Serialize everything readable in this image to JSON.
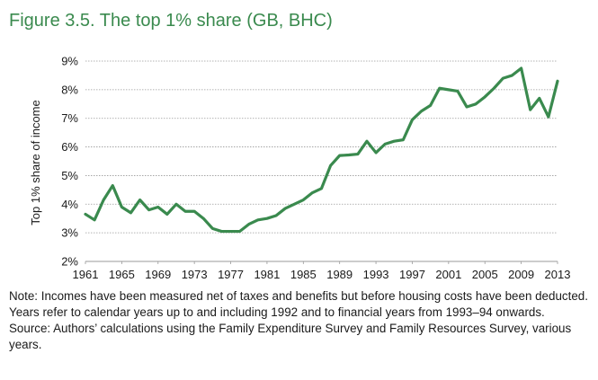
{
  "figure": {
    "title": "Figure 3.5. The top 1% share (GB, BHC)",
    "note": "Note: Incomes have been measured net of taxes and benefits but before housing costs have been deducted. Years refer to calendar years up to and including 1992 and to financial years from 1993–94 onwards.",
    "source": "Source: Authors’ calculations using the Family Expenditure Survey and Family Resources Survey, various years."
  },
  "colors": {
    "line": "#3a8a4e",
    "title": "#3a8a4e",
    "grid": "#9a9a9a"
  },
  "chart_data": {
    "type": "line",
    "title": "Figure 3.5. The top 1% share (GB, BHC)",
    "xlabel": "",
    "ylabel": "Top 1% share of income",
    "ylim": [
      2,
      9
    ],
    "yticks": [
      "2%",
      "3%",
      "4%",
      "5%",
      "6%",
      "7%",
      "8%",
      "9%"
    ],
    "xlim": [
      1961,
      2013
    ],
    "xticks": [
      "1961",
      "1965",
      "1969",
      "1973",
      "1977",
      "1981",
      "1985",
      "1989",
      "1993",
      "1997",
      "2001",
      "2005",
      "2009",
      "2013"
    ],
    "grid": "horizontal dotted",
    "series": [
      {
        "name": "",
        "x": [
          1961,
          1962,
          1963,
          1964,
          1965,
          1966,
          1967,
          1968,
          1969,
          1970,
          1971,
          1972,
          1973,
          1974,
          1975,
          1976,
          1977,
          1978,
          1979,
          1980,
          1981,
          1982,
          1983,
          1984,
          1985,
          1986,
          1987,
          1988,
          1989,
          1990,
          1991,
          1992,
          1993,
          1994,
          1995,
          1996,
          1997,
          1998,
          1999,
          2000,
          2001,
          2002,
          2003,
          2004,
          2005,
          2006,
          2007,
          2008,
          2009,
          2010,
          2011,
          2012,
          2013
        ],
        "values": [
          3.65,
          3.45,
          4.15,
          4.65,
          3.9,
          3.7,
          4.15,
          3.8,
          3.9,
          3.65,
          4.0,
          3.75,
          3.75,
          3.5,
          3.15,
          3.05,
          3.05,
          3.05,
          3.3,
          3.45,
          3.5,
          3.6,
          3.85,
          4.0,
          4.15,
          4.4,
          4.55,
          5.35,
          5.7,
          5.72,
          5.75,
          6.2,
          5.8,
          6.1,
          6.2,
          6.25,
          6.95,
          7.25,
          7.45,
          8.05,
          8.0,
          7.95,
          7.4,
          7.5,
          7.75,
          8.05,
          8.4,
          8.5,
          8.75,
          7.3,
          7.7,
          7.05,
          8.3
        ]
      }
    ]
  }
}
